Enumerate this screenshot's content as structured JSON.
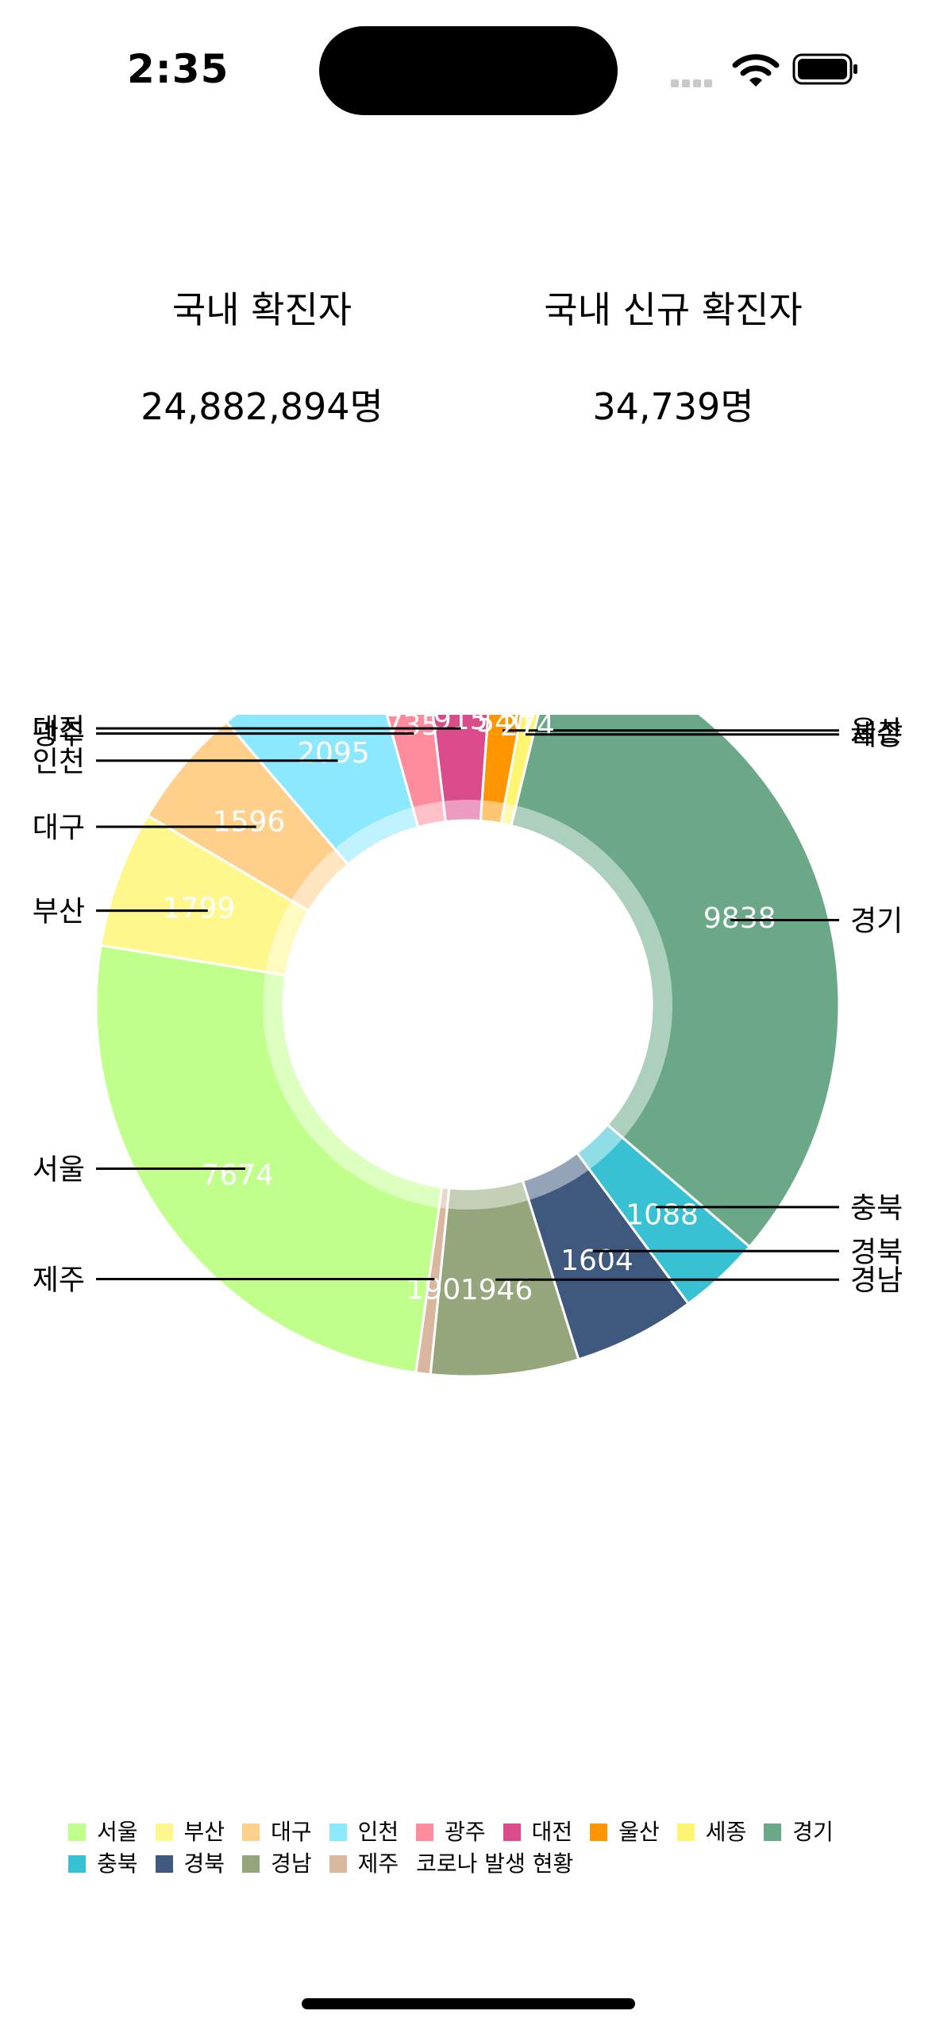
{
  "status_bar": {
    "time": "2:35"
  },
  "summary": {
    "total_label": "국내 확진자",
    "total_value": "24,882,894명",
    "new_label": "국내 신규 확진자",
    "new_value": "34,739명"
  },
  "chart_data": {
    "type": "pie",
    "variant": "donut",
    "description": "코로나 발생 현황",
    "slices": [
      {
        "label": "서울",
        "value": 7674,
        "color": "#c1ff8c"
      },
      {
        "label": "부산",
        "value": 1799,
        "color": "#fff68c"
      },
      {
        "label": "대구",
        "value": 1596,
        "color": "#ffd08c"
      },
      {
        "label": "인천",
        "value": 2095,
        "color": "#8ce8ff"
      },
      {
        "label": "광주",
        "value": 735,
        "color": "#ff8c9c"
      },
      {
        "label": "대전",
        "value": 915,
        "color": "#db4b8c"
      },
      {
        "label": "울산",
        "value": 540,
        "color": "#ff9600"
      },
      {
        "label": "세종",
        "value": 274,
        "color": "#fff573"
      },
      {
        "label": "경기",
        "value": 9838,
        "color": "#6aa887"
      },
      {
        "label": "충북",
        "value": 1088,
        "color": "#38c1d2"
      },
      {
        "label": "경북",
        "value": 1604,
        "color": "#3f587e"
      },
      {
        "label": "경남",
        "value": 1946,
        "color": "#95a67c"
      },
      {
        "label": "제주",
        "value": 190,
        "color": "#d8b79e"
      }
    ],
    "legend_placement": "bottom-left"
  }
}
